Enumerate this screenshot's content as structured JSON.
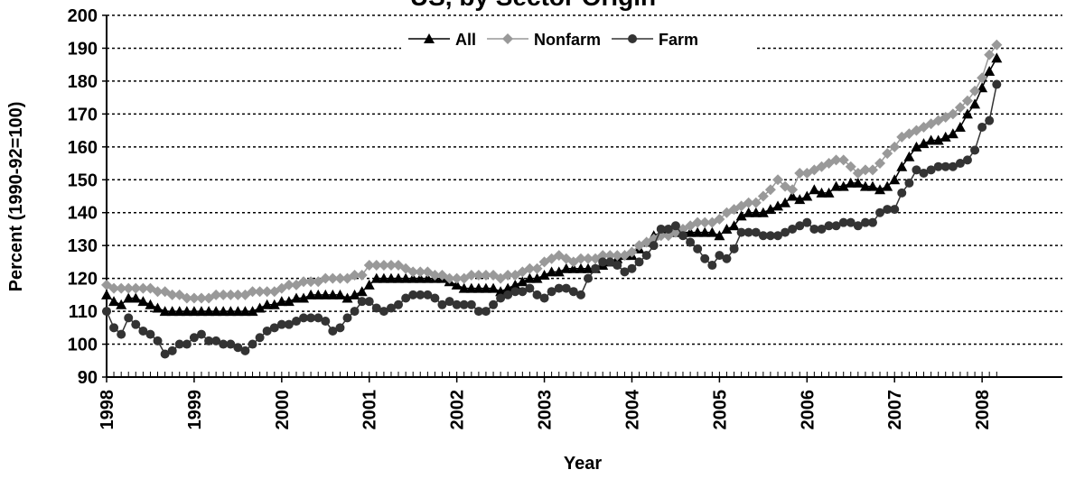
{
  "chart_data": {
    "type": "line",
    "title": "US, by Sector Origin",
    "x_label": "Year",
    "y_label": "Percent (1990-92=100)",
    "x": [
      1998,
      1998.083,
      1998.167,
      1998.25,
      1998.333,
      1998.417,
      1998.5,
      1998.583,
      1998.667,
      1998.75,
      1998.833,
      1998.917,
      1999,
      1999.083,
      1999.167,
      1999.25,
      1999.333,
      1999.417,
      1999.5,
      1999.583,
      1999.667,
      1999.75,
      1999.833,
      1999.917,
      2000,
      2000.083,
      2000.167,
      2000.25,
      2000.333,
      2000.417,
      2000.5,
      2000.583,
      2000.667,
      2000.75,
      2000.833,
      2000.917,
      2001,
      2001.083,
      2001.167,
      2001.25,
      2001.333,
      2001.417,
      2001.5,
      2001.583,
      2001.667,
      2001.75,
      2001.833,
      2001.917,
      2002,
      2002.083,
      2002.167,
      2002.25,
      2002.333,
      2002.417,
      2002.5,
      2002.583,
      2002.667,
      2002.75,
      2002.833,
      2002.917,
      2003,
      2003.083,
      2003.167,
      2003.25,
      2003.333,
      2003.417,
      2003.5,
      2003.583,
      2003.667,
      2003.75,
      2003.833,
      2003.917,
      2004,
      2004.083,
      2004.167,
      2004.25,
      2004.333,
      2004.417,
      2004.5,
      2004.583,
      2004.667,
      2004.75,
      2004.833,
      2004.917,
      2005,
      2005.083,
      2005.167,
      2005.25,
      2005.333,
      2005.417,
      2005.5,
      2005.583,
      2005.667,
      2005.75,
      2005.833,
      2005.917,
      2006,
      2006.083,
      2006.167,
      2006.25,
      2006.333,
      2006.417,
      2006.5,
      2006.583,
      2006.667,
      2006.75,
      2006.833,
      2006.917,
      2007,
      2007.083,
      2007.167,
      2007.25,
      2007.333,
      2007.417,
      2007.5,
      2007.583,
      2007.667,
      2007.75,
      2007.833,
      2007.917,
      2008,
      2008.083,
      2008.167
    ],
    "series": [
      {
        "name": "All",
        "color": "#000000",
        "marker": "triangle",
        "values": [
          115,
          113,
          112,
          114,
          114,
          113,
          112,
          111,
          110,
          110,
          110,
          110,
          110,
          110,
          110,
          110,
          110,
          110,
          110,
          110,
          110,
          111,
          112,
          112,
          113,
          113,
          114,
          114,
          115,
          115,
          115,
          115,
          115,
          114,
          115,
          116,
          118,
          120,
          120,
          120,
          120,
          120,
          120,
          120,
          120,
          120,
          120,
          119,
          118,
          117,
          117,
          117,
          117,
          117,
          116,
          117,
          118,
          119,
          120,
          120,
          121,
          122,
          122,
          123,
          123,
          123,
          123,
          123,
          124,
          125,
          126,
          127,
          127,
          129,
          131,
          133,
          134,
          134,
          134,
          134,
          134,
          134,
          134,
          134,
          133,
          135,
          136,
          139,
          140,
          140,
          140,
          141,
          142,
          143,
          145,
          144,
          145,
          147,
          146,
          146,
          148,
          148,
          149,
          149,
          148,
          148,
          147,
          148,
          150,
          154,
          157,
          160,
          161,
          162,
          162,
          163,
          164,
          166,
          170,
          173,
          178,
          183,
          187
        ]
      },
      {
        "name": "Nonfarm",
        "color": "#999999",
        "marker": "diamond",
        "values": [
          118,
          117,
          117,
          117,
          117,
          117,
          117,
          116,
          116,
          115,
          115,
          114,
          114,
          114,
          114,
          115,
          115,
          115,
          115,
          115,
          116,
          116,
          116,
          116,
          117,
          118,
          118,
          119,
          119,
          119,
          120,
          120,
          120,
          120,
          121,
          121,
          124,
          124,
          124,
          124,
          124,
          123,
          122,
          122,
          122,
          121,
          121,
          120,
          120,
          120,
          121,
          121,
          121,
          121,
          120,
          121,
          121,
          122,
          123,
          123,
          125,
          126,
          127,
          126,
          125,
          126,
          126,
          126,
          127,
          127,
          127,
          127,
          128,
          130,
          131,
          132,
          133,
          133,
          134,
          135,
          136,
          137,
          137,
          137,
          138,
          140,
          141,
          142,
          143,
          143,
          145,
          147,
          150,
          148,
          147,
          152,
          152,
          153,
          154,
          155,
          156,
          156,
          154,
          152,
          153,
          153,
          155,
          158,
          160,
          163,
          164,
          165,
          166,
          167,
          168,
          169,
          170,
          172,
          174,
          177,
          181,
          188,
          191
        ]
      },
      {
        "name": "Farm",
        "color": "#333333",
        "marker": "circle",
        "values": [
          110,
          105,
          103,
          108,
          106,
          104,
          103,
          101,
          97,
          98,
          100,
          100,
          102,
          103,
          101,
          101,
          100,
          100,
          99,
          98,
          100,
          102,
          104,
          105,
          106,
          106,
          107,
          108,
          108,
          108,
          107,
          104,
          105,
          108,
          110,
          113,
          113,
          111,
          110,
          111,
          112,
          114,
          115,
          115,
          115,
          114,
          112,
          113,
          112,
          112,
          112,
          110,
          110,
          112,
          114,
          115,
          116,
          116,
          117,
          115,
          114,
          116,
          117,
          117,
          116,
          115,
          120,
          123,
          125,
          125,
          124,
          122,
          123,
          125,
          127,
          130,
          135,
          135,
          136,
          133,
          131,
          129,
          126,
          124,
          127,
          126,
          129,
          134,
          134,
          134,
          133,
          133,
          133,
          134,
          135,
          136,
          137,
          135,
          135,
          136,
          136,
          137,
          137,
          136,
          137,
          137,
          140,
          141,
          141,
          146,
          149,
          153,
          152,
          153,
          154,
          154,
          154,
          155,
          156,
          159,
          166,
          168,
          179
        ]
      }
    ],
    "xlim": [
      1998,
      2008.917
    ],
    "xticks": [
      1998,
      1999,
      2000,
      2001,
      2002,
      2003,
      2004,
      2005,
      2006,
      2007,
      2008
    ],
    "ylim": [
      90,
      200
    ],
    "yticks": [
      90,
      100,
      110,
      120,
      130,
      140,
      150,
      160,
      170,
      180,
      190,
      200
    ],
    "grid": true,
    "legend": "top"
  }
}
